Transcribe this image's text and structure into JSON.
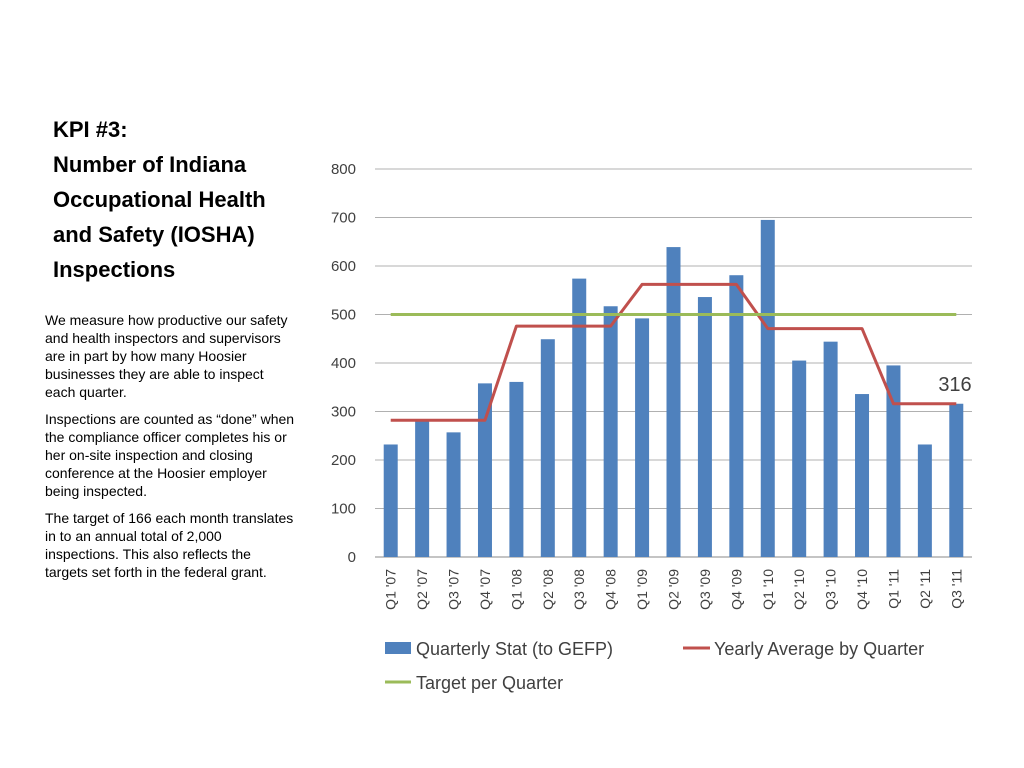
{
  "slide": {
    "title_lines": [
      "KPI #3:",
      "Number of Indiana",
      "Occupational Health",
      "and Safety (IOSHA)",
      "Inspections"
    ],
    "paragraphs": [
      "We measure how productive our safety and health inspectors and supervisors are in part by how many Hoosier businesses they are able to inspect each quarter.",
      "Inspections are counted as “done” when the compliance officer completes his or her on-site inspection and closing conference at the Hoosier employer being inspected.",
      "The target of 166 each month translates in to an annual total of 2,000 inspections. This also reflects the targets set forth in the federal grant."
    ]
  },
  "chart_data": {
    "type": "bar",
    "categories": [
      "Q1 '07",
      "Q2 '07",
      "Q3 '07",
      "Q4 '07",
      "Q1 '08",
      "Q2 '08",
      "Q3 '08",
      "Q4 '08",
      "Q1 '09",
      "Q2 '09",
      "Q3 '09",
      "Q4 '09",
      "Q1 '10",
      "Q2 '10",
      "Q3 '10",
      "Q4 '10",
      "Q1 '11",
      "Q2 '11",
      "Q3 '11"
    ],
    "ylim": [
      0,
      800
    ],
    "yticks": [
      "0",
      "100",
      "200",
      "300",
      "400",
      "500",
      "600",
      "700",
      "800"
    ],
    "grid": true,
    "legend_position": "bottom",
    "series": [
      {
        "name": "Quarterly Stat (to GEFP)",
        "type": "bar",
        "color": "#4F81BD",
        "values": [
          232,
          280,
          257,
          358,
          361,
          449,
          574,
          517,
          492,
          639,
          536,
          581,
          695,
          405,
          444,
          336,
          395,
          232,
          316
        ]
      },
      {
        "name": "Yearly Average by Quarter",
        "type": "line",
        "color": "#C0504D",
        "values": [
          282,
          282,
          282,
          282,
          476,
          476,
          476,
          476,
          562,
          562,
          562,
          562,
          471,
          471,
          471,
          471,
          316,
          316,
          316
        ]
      },
      {
        "name": "Target per Quarter",
        "type": "line",
        "color": "#9BBB59",
        "values": [
          500,
          500,
          500,
          500,
          500,
          500,
          500,
          500,
          500,
          500,
          500,
          500,
          500,
          500,
          500,
          500,
          500,
          500,
          500
        ]
      }
    ],
    "annotations": [
      "316"
    ]
  }
}
